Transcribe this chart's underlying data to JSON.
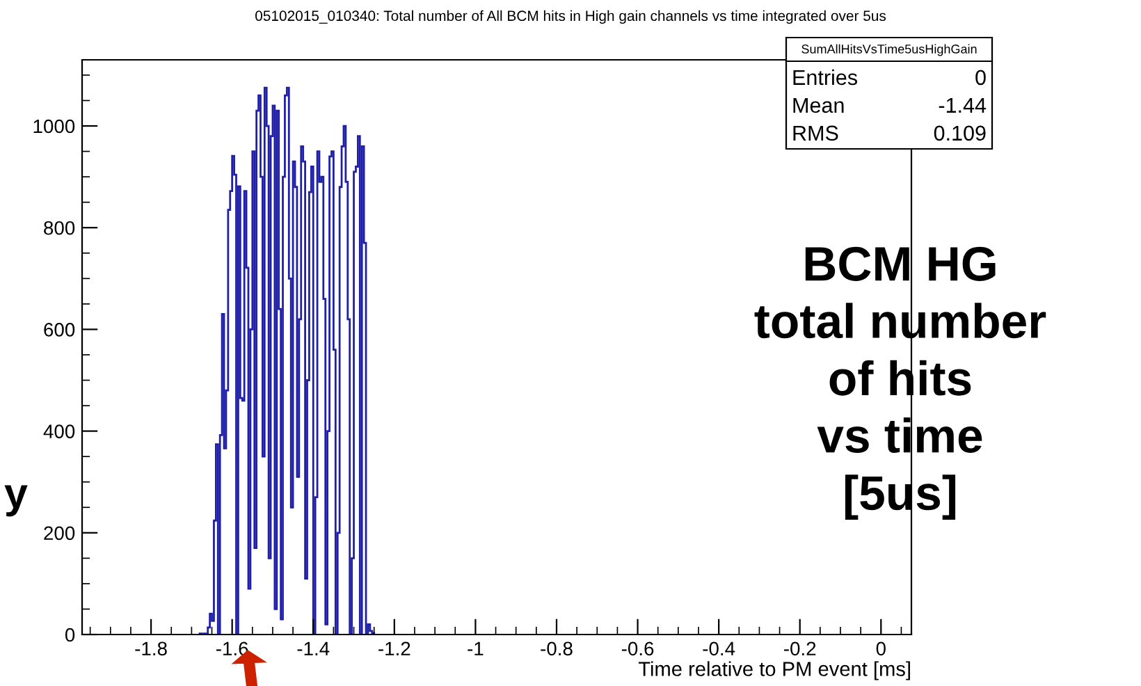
{
  "chart_data": {
    "type": "histogram",
    "title": "05102015_010340: Total number of All BCM hits in High gain channels vs time integrated over 5us",
    "xlabel": "Time relative to PM event [ms]",
    "annotations": [
      "SumAllHitsVsTime5usHighGain",
      "Entries 0",
      "Mean -1.44",
      "RMS 0.109",
      "BCM HG\ntotal number\nof hits\nvs time\n[5us]",
      "y"
    ],
    "bins": [
      -1.68,
      -1.675,
      -1.67,
      -1.665,
      -1.66,
      -1.655,
      -1.65,
      -1.645,
      -1.64,
      -1.635,
      -1.63,
      -1.625,
      -1.62,
      -1.615,
      -1.61,
      -1.605,
      -1.6,
      -1.595,
      -1.59,
      -1.585,
      -1.58,
      -1.575,
      -1.57,
      -1.565,
      -1.56,
      -1.555,
      -1.55,
      -1.545,
      -1.54,
      -1.535,
      -1.53,
      -1.525,
      -1.52,
      -1.515,
      -1.51,
      -1.505,
      -1.5,
      -1.495,
      -1.49,
      -1.485,
      -1.48,
      -1.475,
      -1.47,
      -1.465,
      -1.46,
      -1.455,
      -1.45,
      -1.445,
      -1.44,
      -1.435,
      -1.43,
      -1.425,
      -1.42,
      -1.415,
      -1.41,
      -1.405,
      -1.4,
      -1.395,
      -1.39,
      -1.385,
      -1.38,
      -1.375,
      -1.37,
      -1.365,
      -1.36,
      -1.355,
      -1.35,
      -1.345,
      -1.34,
      -1.335,
      -1.33,
      -1.325,
      -1.32,
      -1.315,
      -1.31,
      -1.305,
      -1.3,
      -1.295,
      -1.29,
      -1.285,
      -1.28,
      -1.275,
      -1.27,
      -1.265,
      -1.26,
      -1.255,
      -1.25
    ],
    "values": [
      2,
      0,
      2,
      0,
      14,
      41,
      27,
      224,
      374,
      0,
      392,
      630,
      366,
      480,
      835,
      872,
      941,
      904,
      0,
      881,
      465,
      460,
      872,
      721,
      90,
      600,
      950,
      170,
      1030,
      1060,
      900,
      350,
      1075,
      1000,
      150,
      980,
      1040,
      50,
      1030,
      640,
      30,
      900,
      1060,
      1075,
      700,
      250,
      930,
      880,
      310,
      620,
      960,
      930,
      110,
      500,
      870,
      920,
      0,
      270,
      950,
      890,
      900,
      660,
      20,
      400,
      940,
      950,
      560,
      0,
      200,
      880,
      960,
      1000,
      890,
      620,
      0,
      150,
      910,
      920,
      980,
      0,
      960,
      770,
      0,
      20,
      7,
      3
    ],
    "color": "#1f1fa8",
    "xlim": [
      -1.97,
      0.075
    ],
    "ylim": [
      0,
      1130
    ],
    "xticks": [
      -1.8,
      -1.6,
      -1.4,
      -1.2,
      -1,
      -0.8,
      -0.6,
      -0.4,
      -0.2,
      0
    ],
    "yticks": [
      0,
      200,
      400,
      600,
      800,
      1000
    ],
    "grid": false,
    "legend": false
  }
}
